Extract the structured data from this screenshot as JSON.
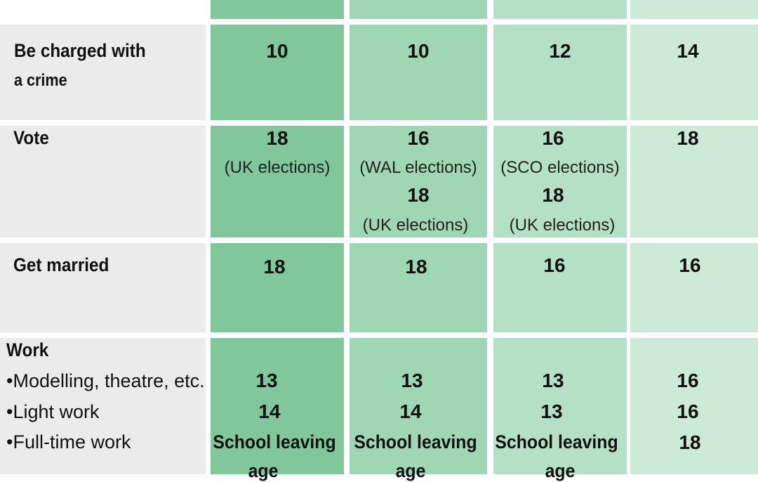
{
  "rows": {
    "crime": {
      "label_line1": "Be charged with",
      "label_line2": "a crime",
      "values": [
        "10",
        "10",
        "12",
        "14"
      ]
    },
    "vote": {
      "label": "Vote",
      "c1_age": "18",
      "c1_note": "(UK elections)",
      "c2_age1": "16",
      "c2_note1": "(WAL elections)",
      "c2_age2": "18",
      "c2_note2": "(UK elections)",
      "c3_age1": "16",
      "c3_note1": "(SCO elections)",
      "c3_age2": "18",
      "c3_note2": "(UK elections)",
      "c4_age": "18"
    },
    "married": {
      "label": "Get married",
      "values": [
        "18",
        "18",
        "16",
        "16"
      ]
    },
    "work": {
      "label": "Work",
      "items": [
        "•Modelling, theatre, etc.",
        "•Light work",
        "•Full-time work"
      ],
      "modelling": [
        "13",
        "13",
        "13",
        "16"
      ],
      "light": [
        "14",
        "14",
        "13",
        "16"
      ],
      "fulltime": [
        "School leaving",
        "School leaving",
        "School leaving",
        "18"
      ],
      "fulltime_cont": "age"
    }
  },
  "colors": {
    "label_bg": "#ebebeb",
    "col1": "#80c89c",
    "col2": "#9fd6b3",
    "col3": "#b4e0c5",
    "col4": "#cde9d8"
  }
}
